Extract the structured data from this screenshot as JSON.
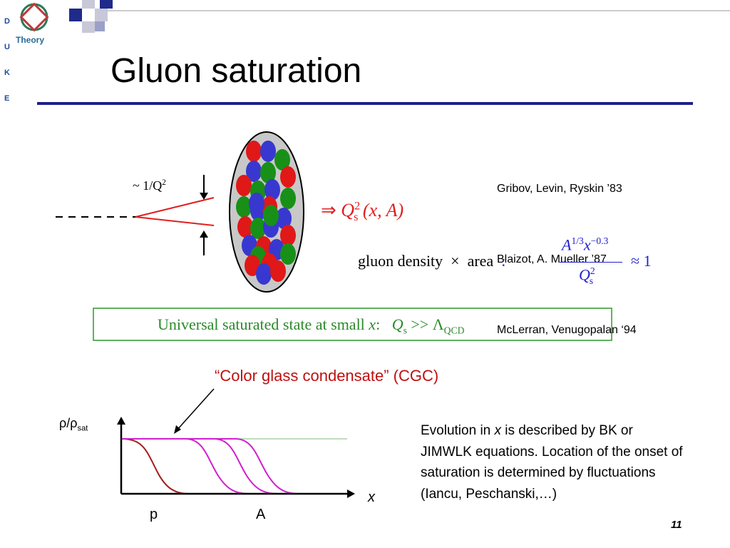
{
  "logo": {
    "letters": [
      "D",
      "U",
      "K",
      "E"
    ],
    "text": "Theory"
  },
  "title": "Gluon saturation",
  "references": [
    "Gribov, Levin, Ryskin ’83",
    "Blaizot, A. Mueller ’87",
    "McLerran, Venugopalan ‘94"
  ],
  "diagram": {
    "scale_label": "~ 1/Q",
    "scale_label_sup": "2"
  },
  "saturation_scale": {
    "arrow": "⇒",
    "symbol": "Q",
    "sub": "s",
    "sup": "2",
    "args": "(x, A)"
  },
  "criterion": {
    "text": "gluon density  ×  area",
    "colon": ":",
    "num_base": "A",
    "num_exp": "1/3",
    "num_var": "x",
    "num_var_exp": "−0.3",
    "den_symbol": "Q",
    "den_sub": "s",
    "den_sup": "2",
    "approx": "≈ 1"
  },
  "highlight": {
    "text": "Universal saturated state at small ",
    "var": "x",
    "colon": ":",
    "symbol": "Q",
    "sub": "s",
    "relation": " >> Λ",
    "lambda_sub": "QCD"
  },
  "cgc_label": "“Color glass condensate” (CGC)",
  "plot": {
    "y_label": "ρ/ρ",
    "y_label_sub": "sat",
    "x_label": "x",
    "labels": [
      "p",
      "A"
    ]
  },
  "evolution_text": [
    "Evolution in ",
    "x",
    " is described by BK or JIMWLK equations. Location of the onset of saturation is determined by fluctuations (Iancu, Peschanski,…)"
  ],
  "page_number": "11"
}
